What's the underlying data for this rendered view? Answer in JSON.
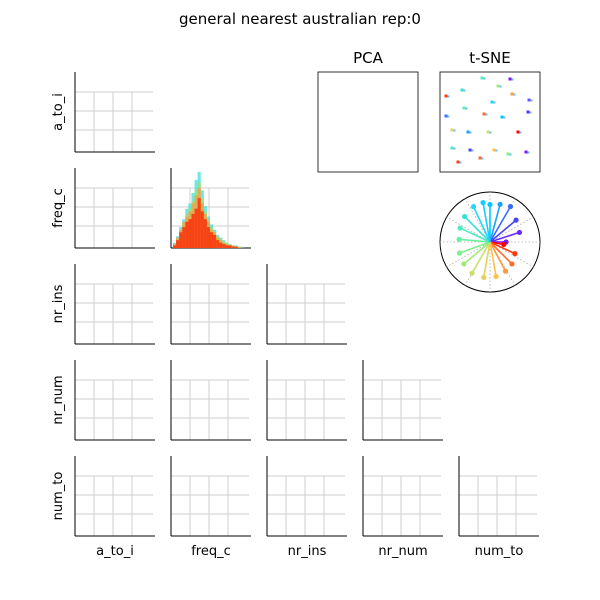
{
  "chart_data": {
    "type": "pairplot",
    "title": "general nearest australian rep:0",
    "variables": [
      "a_to_i",
      "freq_c",
      "nr_ins",
      "nr_num",
      "num_to"
    ],
    "grid": true,
    "panels": {
      "pca": {
        "title": "PCA"
      },
      "tsne": {
        "title": "t-SNE"
      }
    },
    "freq_c_histogram": {
      "type": "bar",
      "bins": 24,
      "xlim": [
        0,
        1
      ],
      "series": [
        {
          "color": "#ff2200",
          "values": [
            2,
            6,
            12,
            16,
            20,
            22,
            26,
            30,
            38,
            28,
            22,
            16,
            12,
            10,
            6,
            4,
            3,
            2,
            2,
            1,
            1,
            0,
            0,
            0
          ]
        },
        {
          "color": "#ff9a3c",
          "values": [
            3,
            8,
            14,
            20,
            24,
            28,
            34,
            40,
            46,
            34,
            26,
            20,
            14,
            12,
            8,
            6,
            4,
            3,
            2,
            2,
            1,
            1,
            0,
            0
          ]
        },
        {
          "color": "#9fe07a",
          "values": [
            2,
            7,
            13,
            18,
            26,
            30,
            36,
            44,
            50,
            38,
            28,
            22,
            16,
            12,
            9,
            7,
            5,
            4,
            3,
            2,
            1,
            1,
            0,
            0
          ]
        },
        {
          "color": "#3ee0d8",
          "values": [
            4,
            9,
            16,
            22,
            30,
            34,
            42,
            52,
            58,
            44,
            32,
            24,
            18,
            14,
            10,
            8,
            6,
            4,
            3,
            2,
            2,
            1,
            1,
            0
          ]
        },
        {
          "color": "#7a4cff",
          "values": [
            1,
            5,
            10,
            14,
            18,
            22,
            28,
            36,
            40,
            30,
            22,
            18,
            12,
            10,
            7,
            5,
            4,
            3,
            2,
            1,
            1,
            0,
            0,
            0
          ]
        }
      ]
    },
    "radial": {
      "type": "radial-stem",
      "spokes": [
        {
          "angle": 90,
          "length": 0.75,
          "color": "#00c8ff"
        },
        {
          "angle": 75,
          "length": 0.78,
          "color": "#1ea0ff"
        },
        {
          "angle": 60,
          "length": 0.82,
          "color": "#3a6cff"
        },
        {
          "angle": 40,
          "length": 0.68,
          "color": "#4a44ff"
        },
        {
          "angle": 18,
          "length": 0.62,
          "color": "#6a28ff"
        },
        {
          "angle": 0,
          "length": 0.32,
          "color": "#7a1cf0"
        },
        {
          "angle": -10,
          "length": 0.28,
          "color": "#ff0000"
        },
        {
          "angle": -25,
          "length": 0.55,
          "color": "#ff3a10"
        },
        {
          "angle": -45,
          "length": 0.62,
          "color": "#ff6a28"
        },
        {
          "angle": -62,
          "length": 0.66,
          "color": "#ff9a3c"
        },
        {
          "angle": -80,
          "length": 0.7,
          "color": "#ffc04a"
        },
        {
          "angle": -100,
          "length": 0.72,
          "color": "#e8d05a"
        },
        {
          "angle": -120,
          "length": 0.72,
          "color": "#c8e06a"
        },
        {
          "angle": -140,
          "length": 0.68,
          "color": "#a0ea7a"
        },
        {
          "angle": -160,
          "length": 0.65,
          "color": "#7cf08a"
        },
        {
          "angle": 175,
          "length": 0.62,
          "color": "#64f0a0"
        },
        {
          "angle": 155,
          "length": 0.66,
          "color": "#4cecc0"
        },
        {
          "angle": 135,
          "length": 0.72,
          "color": "#38e0d8"
        },
        {
          "angle": 115,
          "length": 0.78,
          "color": "#20d8f0"
        },
        {
          "angle": 100,
          "length": 0.8,
          "color": "#10d0ff"
        }
      ]
    },
    "tsne_points": [
      {
        "x": 0.42,
        "y": 0.94,
        "color": "#4cecc0"
      },
      {
        "x": 0.7,
        "y": 0.93,
        "color": "#7a1cf0"
      },
      {
        "x": 0.06,
        "y": 0.76,
        "color": "#ff3a10"
      },
      {
        "x": 0.22,
        "y": 0.82,
        "color": "#38e0d8"
      },
      {
        "x": 0.52,
        "y": 0.7,
        "color": "#20d8f0"
      },
      {
        "x": 0.58,
        "y": 0.86,
        "color": "#a0ea7a"
      },
      {
        "x": 0.72,
        "y": 0.78,
        "color": "#ff9a3c"
      },
      {
        "x": 0.89,
        "y": 0.72,
        "color": "#7a4cff"
      },
      {
        "x": 0.06,
        "y": 0.56,
        "color": "#3a6cff"
      },
      {
        "x": 0.24,
        "y": 0.64,
        "color": "#64f0a0"
      },
      {
        "x": 0.44,
        "y": 0.58,
        "color": "#ff6a28"
      },
      {
        "x": 0.62,
        "y": 0.55,
        "color": "#00c8ff"
      },
      {
        "x": 0.88,
        "y": 0.6,
        "color": "#6a28ff"
      },
      {
        "x": 0.28,
        "y": 0.4,
        "color": "#1ea0ff"
      },
      {
        "x": 0.48,
        "y": 0.4,
        "color": "#c8e06a"
      },
      {
        "x": 0.78,
        "y": 0.4,
        "color": "#ff0000"
      },
      {
        "x": 0.12,
        "y": 0.42,
        "color": "#e8d05a"
      },
      {
        "x": 0.3,
        "y": 0.22,
        "color": "#4a44ff"
      },
      {
        "x": 0.54,
        "y": 0.22,
        "color": "#ffc04a"
      },
      {
        "x": 0.68,
        "y": 0.18,
        "color": "#7cf08a"
      },
      {
        "x": 0.18,
        "y": 0.1,
        "color": "#ff3a10"
      },
      {
        "x": 0.4,
        "y": 0.14,
        "color": "#ff6a28"
      },
      {
        "x": 0.86,
        "y": 0.2,
        "color": "#7a1cf0"
      },
      {
        "x": 0.12,
        "y": 0.24,
        "color": "#4cecc0"
      }
    ]
  }
}
